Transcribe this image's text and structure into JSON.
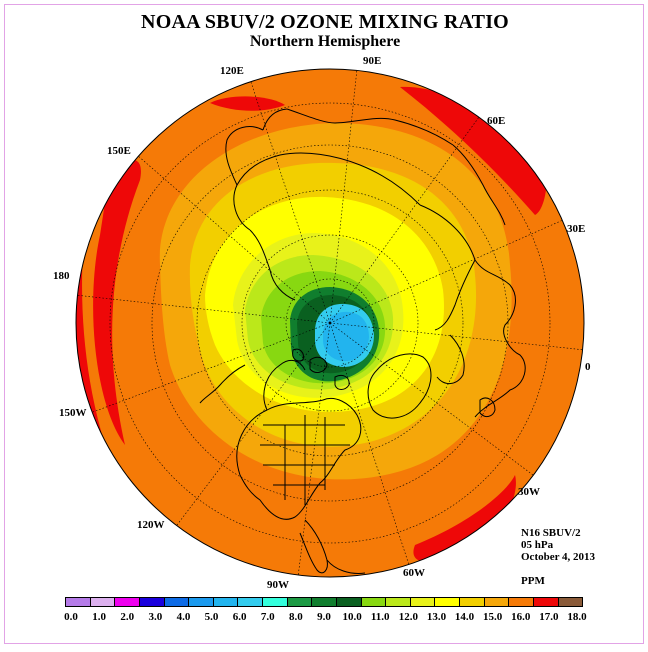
{
  "title": "NOAA SBUV/2 OZONE MIXING RATIO",
  "subtitle": "Northern Hemisphere",
  "longitude_labels": [
    "90E",
    "60E",
    "30E",
    "0",
    "30W",
    "60W",
    "90W",
    "120W",
    "150W",
    "180",
    "150E",
    "120E"
  ],
  "info": {
    "satellite": "N16 SBUV/2",
    "pressure": "05 hPa",
    "date": "October 4, 2013",
    "units": "PPM"
  },
  "colorbar": {
    "colors": [
      "#b57be8",
      "#dcb0ee",
      "#ee00ee",
      "#1a00dd",
      "#0d6be6",
      "#1b9aee",
      "#22b4ee",
      "#33ccee",
      "#33ffdd",
      "#1c9a44",
      "#107e2e",
      "#0a6020",
      "#88d811",
      "#bbe81a",
      "#e8f21a",
      "#ffff00",
      "#f2cf00",
      "#f5a70a",
      "#f57a07",
      "#ee0808",
      "#8a5a38"
    ],
    "tick_labels": [
      "0.0",
      "1.0",
      "2.0",
      "3.0",
      "4.0",
      "5.0",
      "6.0",
      "7.0",
      "8.0",
      "9.0",
      "10.0",
      "11.0",
      "12.0",
      "13.0",
      "14.0",
      "15.0",
      "16.0",
      "17.0",
      "18.0"
    ]
  },
  "field_colors": {
    "red": "#ee0808",
    "orange": "#f57a07",
    "light_orange": "#f5a70a",
    "amber": "#f2cf00",
    "yellow": "#ffff00",
    "yellow_green": "#e8f21a",
    "light_green": "#bbe81a",
    "green": "#88d811",
    "dark_green": "#107e2e",
    "cyan": "#33ccee",
    "light_blue": "#22b4ee"
  }
}
